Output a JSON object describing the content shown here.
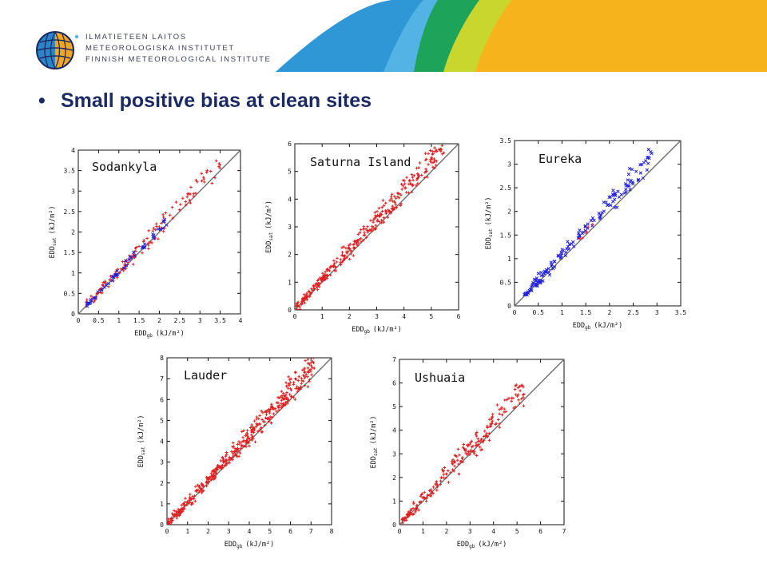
{
  "header": {
    "colors": [
      "#2f97d6",
      "#52b3e4",
      "#1ea35a",
      "#c9d62e",
      "#f7b31c"
    ],
    "logo": {
      "icon": "globe-icon",
      "line1": "ILMATIETEEN LAITOS",
      "line2": "METEOROLOGISKA INSTITUTET",
      "line3": "FINNISH METEOROLOGICAL INSTITUTE"
    }
  },
  "content": {
    "bullet": "•",
    "heading": "Small positive bias at clean sites"
  },
  "chart_data": [
    {
      "type": "scatter",
      "title": "Sodankyla",
      "xlabel": "EDD",
      "xlabel_sub": "gb",
      "xunit": "(kJ/m²)",
      "ylabel": "EDD",
      "ylabel_sub": "sat",
      "yunit": "(kJ/m²)",
      "xlim": [
        0,
        4
      ],
      "ylim": [
        0,
        4
      ],
      "xticks": [
        "0",
        "0.5",
        "1",
        "1.5",
        "2",
        "2.5",
        "3",
        "3.5",
        "4"
      ],
      "yticks": [
        "0",
        "0.5",
        "1",
        "1.5",
        "2",
        "2.5",
        "3",
        "3.5",
        "4"
      ],
      "reference_line": "1:1",
      "grid": false,
      "legend": "none",
      "series": [
        {
          "color": "#e02020",
          "marker": "+",
          "count": 140,
          "x_range": [
            0.2,
            3.5
          ],
          "slope": 1.06,
          "spread": 0.22
        },
        {
          "color": "#2020e0",
          "marker": "x",
          "count": 50,
          "x_range": [
            0.2,
            2.2
          ],
          "slope": 1.03,
          "spread": 0.1
        }
      ]
    },
    {
      "type": "scatter",
      "title": "Saturna Island",
      "xlabel": "EDD",
      "xlabel_sub": "gb",
      "xunit": "(kJ/m²)",
      "ylabel": "EDD",
      "ylabel_sub": "sat",
      "yunit": "(kJ/m²)",
      "xlim": [
        0,
        6
      ],
      "ylim": [
        0,
        6
      ],
      "xticks": [
        "0",
        "1",
        "2",
        "3",
        "4",
        "5",
        "6"
      ],
      "yticks": [
        "0",
        "1",
        "2",
        "3",
        "4",
        "5",
        "6"
      ],
      "reference_line": "1:1",
      "grid": false,
      "legend": "none",
      "series": [
        {
          "color": "#e02020",
          "marker": "+",
          "count": 330,
          "x_range": [
            0.05,
            5.5
          ],
          "slope": 1.08,
          "spread": 0.35
        }
      ]
    },
    {
      "type": "scatter",
      "title": "Eureka",
      "xlabel": "EDD",
      "xlabel_sub": "gb",
      "xunit": "(kJ/m²)",
      "ylabel": "EDD",
      "ylabel_sub": "sat",
      "yunit": "(kJ/m²)",
      "xlim": [
        0,
        3.5
      ],
      "ylim": [
        0,
        3.5
      ],
      "xticks": [
        "0",
        "0.5",
        "1",
        "1.5",
        "2",
        "2.5",
        "3",
        "3.5"
      ],
      "yticks": [
        "0",
        "0.5",
        "1",
        "1.5",
        "2",
        "2.5",
        "3",
        "3.5"
      ],
      "reference_line": "1:1",
      "grid": false,
      "legend": "none",
      "series": [
        {
          "color": "#2020e0",
          "marker": "x",
          "count": 150,
          "x_range": [
            0.2,
            2.9
          ],
          "slope": 1.08,
          "spread": 0.2
        },
        {
          "color": "#e02020",
          "marker": "+",
          "count": 6,
          "x_range": [
            1.3,
            1.9
          ],
          "slope": 1.05,
          "spread": 0.05
        }
      ]
    },
    {
      "type": "scatter",
      "title": "Lauder",
      "xlabel": "EDD",
      "xlabel_sub": "gb",
      "xunit": "(kJ/m²)",
      "ylabel": "EDD",
      "ylabel_sub": "sat",
      "yunit": "(kJ/m²)",
      "xlim": [
        0,
        8
      ],
      "ylim": [
        0,
        8
      ],
      "xticks": [
        "0",
        "1",
        "2",
        "3",
        "4",
        "5",
        "6",
        "7",
        "8"
      ],
      "yticks": [
        "0",
        "1",
        "2",
        "3",
        "4",
        "5",
        "6",
        "7",
        "8"
      ],
      "reference_line": "1:1",
      "grid": false,
      "legend": "none",
      "series": [
        {
          "color": "#e02020",
          "marker": "+",
          "count": 420,
          "x_range": [
            0.05,
            7.2
          ],
          "slope": 1.07,
          "spread": 0.45
        }
      ]
    },
    {
      "type": "scatter",
      "title": "Ushuaia",
      "xlabel": "EDD",
      "xlabel_sub": "gb",
      "xunit": "(kJ/m²)",
      "ylabel": "EDD",
      "ylabel_sub": "sat",
      "yunit": "(kJ/m²)",
      "xlim": [
        0,
        7
      ],
      "ylim": [
        0,
        7
      ],
      "xticks": [
        "0",
        "1",
        "2",
        "3",
        "4",
        "5",
        "6",
        "7"
      ],
      "yticks": [
        "0",
        "1",
        "2",
        "3",
        "4",
        "5",
        "6",
        "7"
      ],
      "reference_line": "1:1",
      "grid": false,
      "legend": "none",
      "series": [
        {
          "color": "#e02020",
          "marker": "+",
          "count": 220,
          "x_range": [
            0.1,
            5.3
          ],
          "slope": 1.08,
          "spread": 0.45
        }
      ]
    }
  ]
}
